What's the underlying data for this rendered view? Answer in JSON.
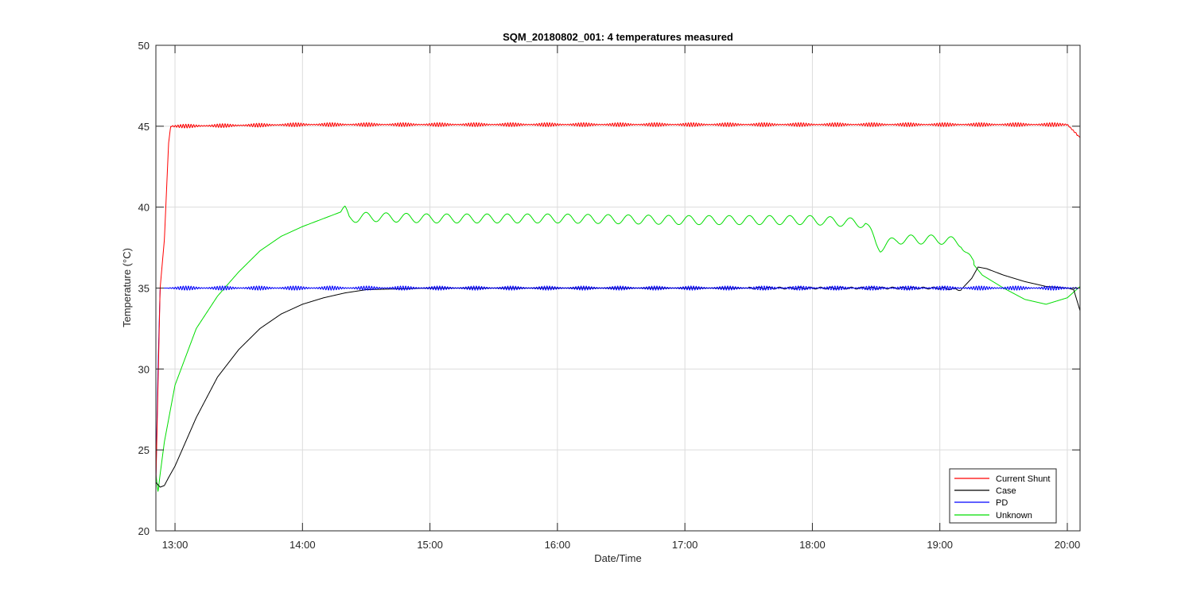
{
  "chart_data": {
    "type": "line",
    "title": "SQM_20180802_001: 4 temperatures measured",
    "xlabel": "Date/Time",
    "ylabel": "Temperature (°C)",
    "xlim": [
      "12:51",
      "20:06"
    ],
    "ylim": [
      20,
      50
    ],
    "xticks": [
      "13:00",
      "14:00",
      "15:00",
      "16:00",
      "17:00",
      "18:00",
      "19:00",
      "20:00"
    ],
    "yticks": [
      20,
      25,
      30,
      35,
      40,
      45,
      50
    ],
    "grid": true,
    "legend_position": "bottom-right",
    "colors": {
      "Current Shunt": "#ff0000",
      "Case": "#000000",
      "PD": "#0000ff",
      "Unknown": "#00dd00"
    },
    "series": [
      {
        "name": "Current Shunt",
        "x": [
          "12:51",
          "12:52",
          "12:53",
          "12:55",
          "12:56",
          "12:57",
          "12:58",
          "13:00",
          "14:00",
          "15:00",
          "16:00",
          "17:00",
          "18:00",
          "19:00",
          "20:00",
          "20:06"
        ],
        "y": [
          23.0,
          29.0,
          35.0,
          38.0,
          41.0,
          44.0,
          45.0,
          45.0,
          45.1,
          45.1,
          45.1,
          45.1,
          45.1,
          45.1,
          45.1,
          44.3
        ]
      },
      {
        "name": "Case",
        "x": [
          "12:51",
          "12:53",
          "12:55",
          "12:57",
          "13:00",
          "13:10",
          "13:20",
          "13:30",
          "13:40",
          "13:50",
          "14:00",
          "14:10",
          "14:20",
          "14:30",
          "15:00",
          "16:00",
          "17:00",
          "18:00",
          "18:30",
          "19:00",
          "19:10",
          "19:15",
          "19:18",
          "19:22",
          "19:30",
          "19:40",
          "19:50",
          "20:00",
          "20:03",
          "20:06"
        ],
        "y": [
          23.0,
          22.7,
          22.8,
          23.3,
          24.0,
          27.0,
          29.5,
          31.2,
          32.5,
          33.4,
          34.0,
          34.4,
          34.7,
          34.9,
          35.0,
          35.0,
          35.0,
          35.0,
          35.0,
          35.0,
          34.9,
          35.6,
          36.3,
          36.2,
          35.8,
          35.4,
          35.1,
          35.0,
          34.9,
          33.6
        ]
      },
      {
        "name": "PD",
        "x": [
          "12:51",
          "12:52",
          "12:53",
          "12:54",
          "13:00",
          "14:00",
          "15:00",
          "16:00",
          "17:00",
          "18:00",
          "19:00",
          "20:00",
          "20:06"
        ],
        "y": [
          23.0,
          30.0,
          35.0,
          35.0,
          35.0,
          35.0,
          35.0,
          35.0,
          35.0,
          35.0,
          35.0,
          35.0,
          35.0
        ]
      },
      {
        "name": "Unknown",
        "x": [
          "12:51",
          "12:52",
          "12:53",
          "12:55",
          "13:00",
          "13:10",
          "13:20",
          "13:30",
          "13:40",
          "13:50",
          "14:00",
          "14:10",
          "14:20",
          "14:22",
          "14:30",
          "15:00",
          "16:00",
          "17:00",
          "18:00",
          "18:25",
          "18:30",
          "18:32",
          "18:40",
          "19:00",
          "19:10",
          "19:15",
          "19:20",
          "19:30",
          "19:40",
          "19:50",
          "20:00",
          "20:06"
        ],
        "y": [
          23.5,
          22.4,
          23.5,
          25.5,
          29.0,
          32.5,
          34.5,
          36.0,
          37.3,
          38.2,
          38.8,
          39.3,
          39.8,
          39.3,
          39.4,
          39.3,
          39.3,
          39.2,
          39.2,
          39.0,
          37.8,
          37.5,
          38.0,
          38.0,
          37.8,
          36.6,
          35.8,
          35.0,
          34.3,
          34.0,
          34.4,
          35.1
        ]
      }
    ]
  }
}
